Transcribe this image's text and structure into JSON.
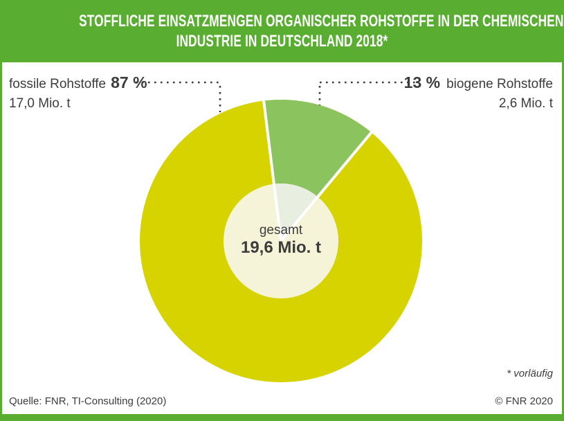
{
  "colors": {
    "frame_green": "#59AD31",
    "pie_yellow": "#D6D300",
    "pie_green": "#8BC45E",
    "center_cream": "#F6F4D8",
    "center_pale_green": "#E8EFE1",
    "text_dark": "#3C3C3B",
    "separator_white": "#FFFFFF"
  },
  "header": {
    "title_line1": "STOFFLICHE EINSATZMENGEN ORGANISCHER ROHSTOFFE IN DER CHEMISCHEN",
    "title_line2": "INDUSTRIE IN DEUTSCHLAND 2018*"
  },
  "chart_data": {
    "type": "pie",
    "title": "Stoffliche Einsatzmengen organischer Rohstoffe in der chemischen Industrie in Deutschland 2018*",
    "unit": "Mio. t",
    "center": {
      "label": "gesamt",
      "value": "19,6 Mio. t",
      "value_numeric": 19.6
    },
    "slices": [
      {
        "name": "fossile Rohstoffe",
        "percent": 87,
        "percent_label": "87 %",
        "amount_label": "17,0 Mio. t",
        "amount_numeric": 17.0,
        "color": "#D6D300"
      },
      {
        "name": "biogene Rohstoffe",
        "percent": 13,
        "percent_label": "13 %",
        "amount_label": "2,6 Mio. t",
        "amount_numeric": 2.6,
        "color": "#8BC45E"
      }
    ],
    "start_angle_deg_from_12": -7,
    "legend_position": "callouts",
    "footnote": "* vorläufig"
  },
  "footer": {
    "source": "Quelle: FNR, TI-Consulting (2020)",
    "copyright": "© FNR 2020"
  }
}
